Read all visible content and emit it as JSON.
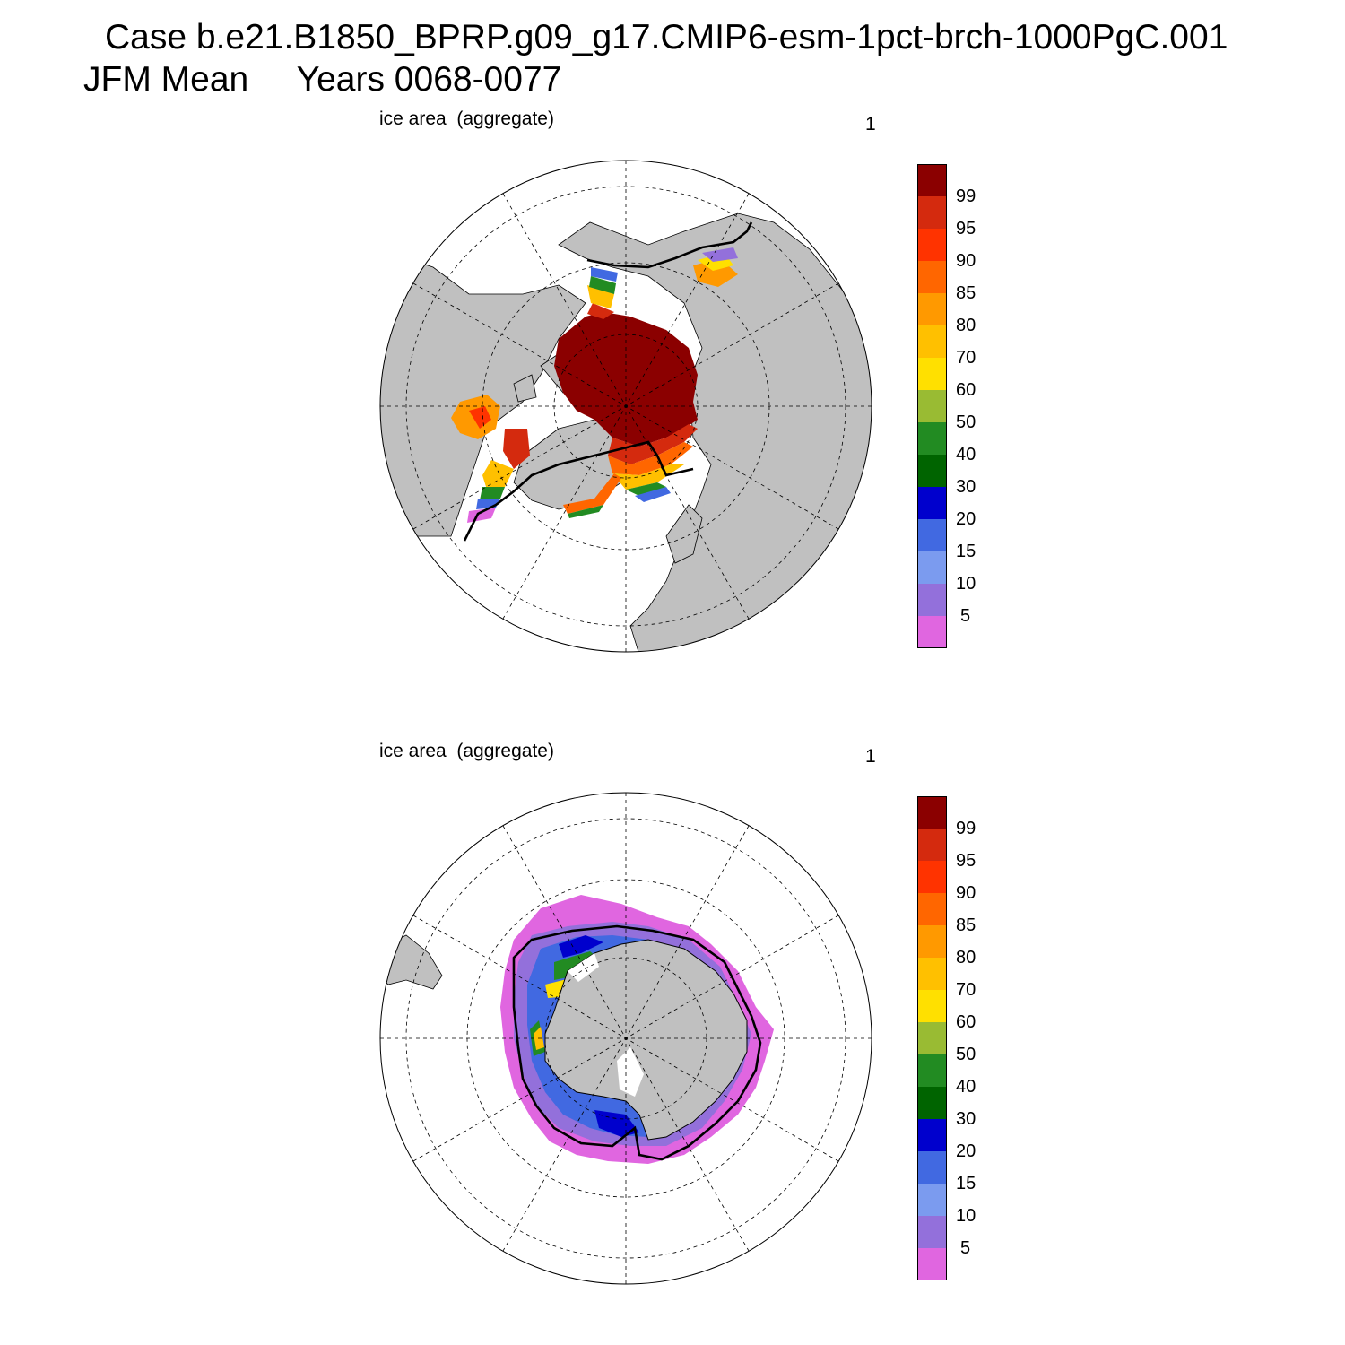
{
  "header": {
    "line1": "Case b.e21.B1850_BPRP.g09_g17.CMIP6-esm-1pct-brch-1000PgC.001",
    "line2": "JFM Mean     Years 0068-0077"
  },
  "panels": [
    {
      "id": "nh",
      "variable_label": "ice area  (aggregate)",
      "panel_number": "1",
      "hemisphere": "North"
    },
    {
      "id": "sh",
      "variable_label": "ice area  (aggregate)",
      "panel_number": "1",
      "hemisphere": "South"
    }
  ],
  "colorbar": {
    "labels": [
      "99",
      "95",
      "90",
      "85",
      "80",
      "70",
      "60",
      "50",
      "40",
      "30",
      "20",
      "15",
      "10",
      "5"
    ],
    "colors": [
      "#8B0000",
      "#D42A0E",
      "#FF3300",
      "#FF6600",
      "#FF9900",
      "#FFC000",
      "#FFE000",
      "#99BB33",
      "#228B22",
      "#006400",
      "#0000CD",
      "#4169E1",
      "#7B9BEF",
      "#9370DB",
      "#E066E0"
    ]
  },
  "style": {
    "land": "#C0C0C0",
    "ocean": "#FFFFFF",
    "contour": "#000000"
  }
}
